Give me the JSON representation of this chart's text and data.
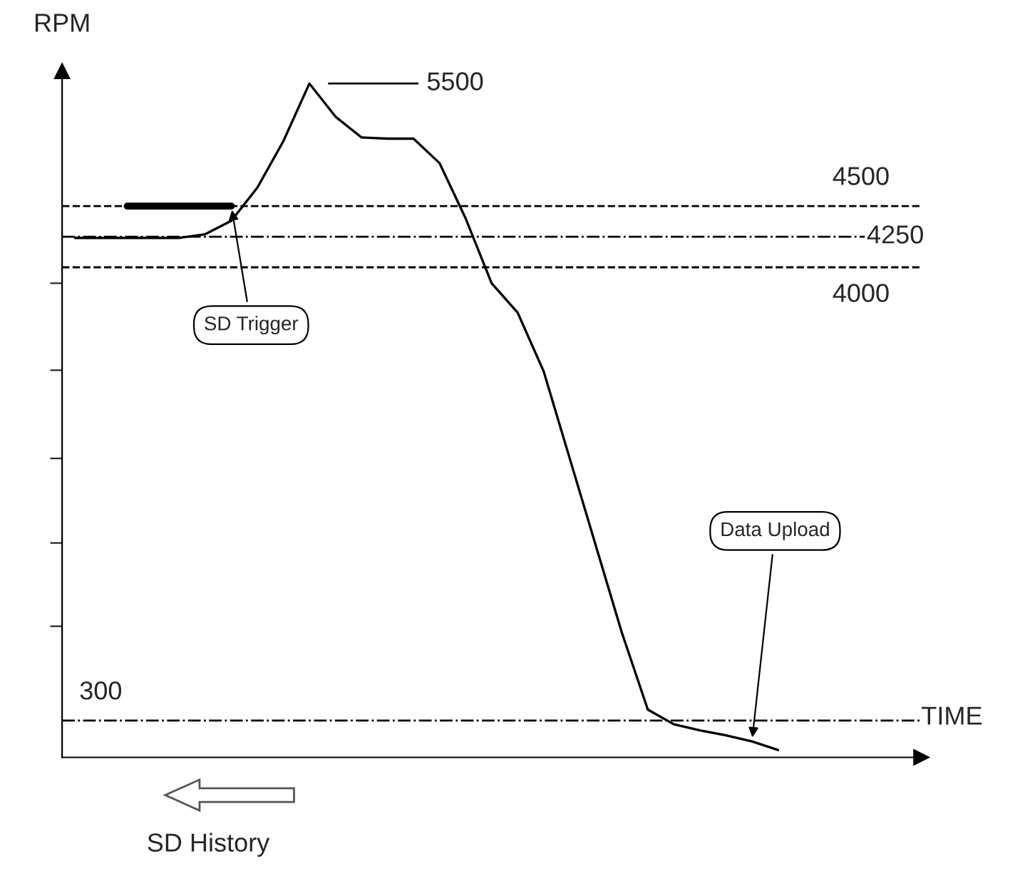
{
  "chart_data": {
    "type": "line",
    "xlabel": "TIME",
    "ylabel": "RPM",
    "categories": [
      null,
      null,
      null,
      null,
      null,
      null,
      null,
      null,
      null,
      null,
      null,
      null,
      null,
      null,
      null,
      null,
      null,
      null,
      null,
      null,
      null,
      null,
      null,
      null,
      null,
      null,
      null,
      null,
      null,
      null,
      null,
      null,
      null
    ],
    "series": [
      {
        "color": "#000000",
        "values": [
          4240,
          4240,
          4240,
          4240,
          4240,
          4270,
          4380,
          4650,
          5030,
          5500,
          5230,
          5060,
          5050,
          5050,
          4850,
          4400,
          3870,
          3630,
          3150,
          2440,
          1730,
          1020,
          390,
          270,
          220,
          180,
          130,
          60,
          null,
          null,
          null,
          null,
          null
        ]
      },
      {
        "color": "#000000",
        "values": [
          null,
          null,
          4500,
          4500,
          4500,
          4500,
          4500,
          null,
          null,
          null,
          null,
          null,
          null,
          null,
          null,
          null,
          null,
          null,
          null,
          null,
          null,
          null,
          null,
          null,
          null,
          null,
          null,
          null,
          null,
          null,
          null,
          null,
          null
        ]
      }
    ],
    "ylim": [
      0,
      5600
    ],
    "yticks": [
      {
        "value": 1070,
        "label": null
      },
      {
        "value": 1750,
        "label": null
      },
      {
        "value": 2440,
        "label": null
      },
      {
        "value": 3160,
        "label": null
      },
      {
        "value": 3870,
        "label": null
      }
    ],
    "grid": false,
    "marker": "none",
    "line_style": "solid",
    "ref_lines": [
      {
        "axis": "y",
        "value": 4500,
        "label": "4500",
        "color": "#000000",
        "line_style": "dashed"
      },
      {
        "axis": "y",
        "value": 4250,
        "label": "4250",
        "color": "#000000",
        "line_style": "dashdot"
      },
      {
        "axis": "y",
        "value": 4000,
        "label": "4000",
        "color": "#000000",
        "line_style": "dashed"
      },
      {
        "axis": "y",
        "value": 300,
        "label": "300",
        "color": "#000000",
        "line_style": "dashdot"
      }
    ],
    "annotations": [
      "5500",
      "SD Trigger",
      "Data Upload",
      "SD History"
    ]
  }
}
